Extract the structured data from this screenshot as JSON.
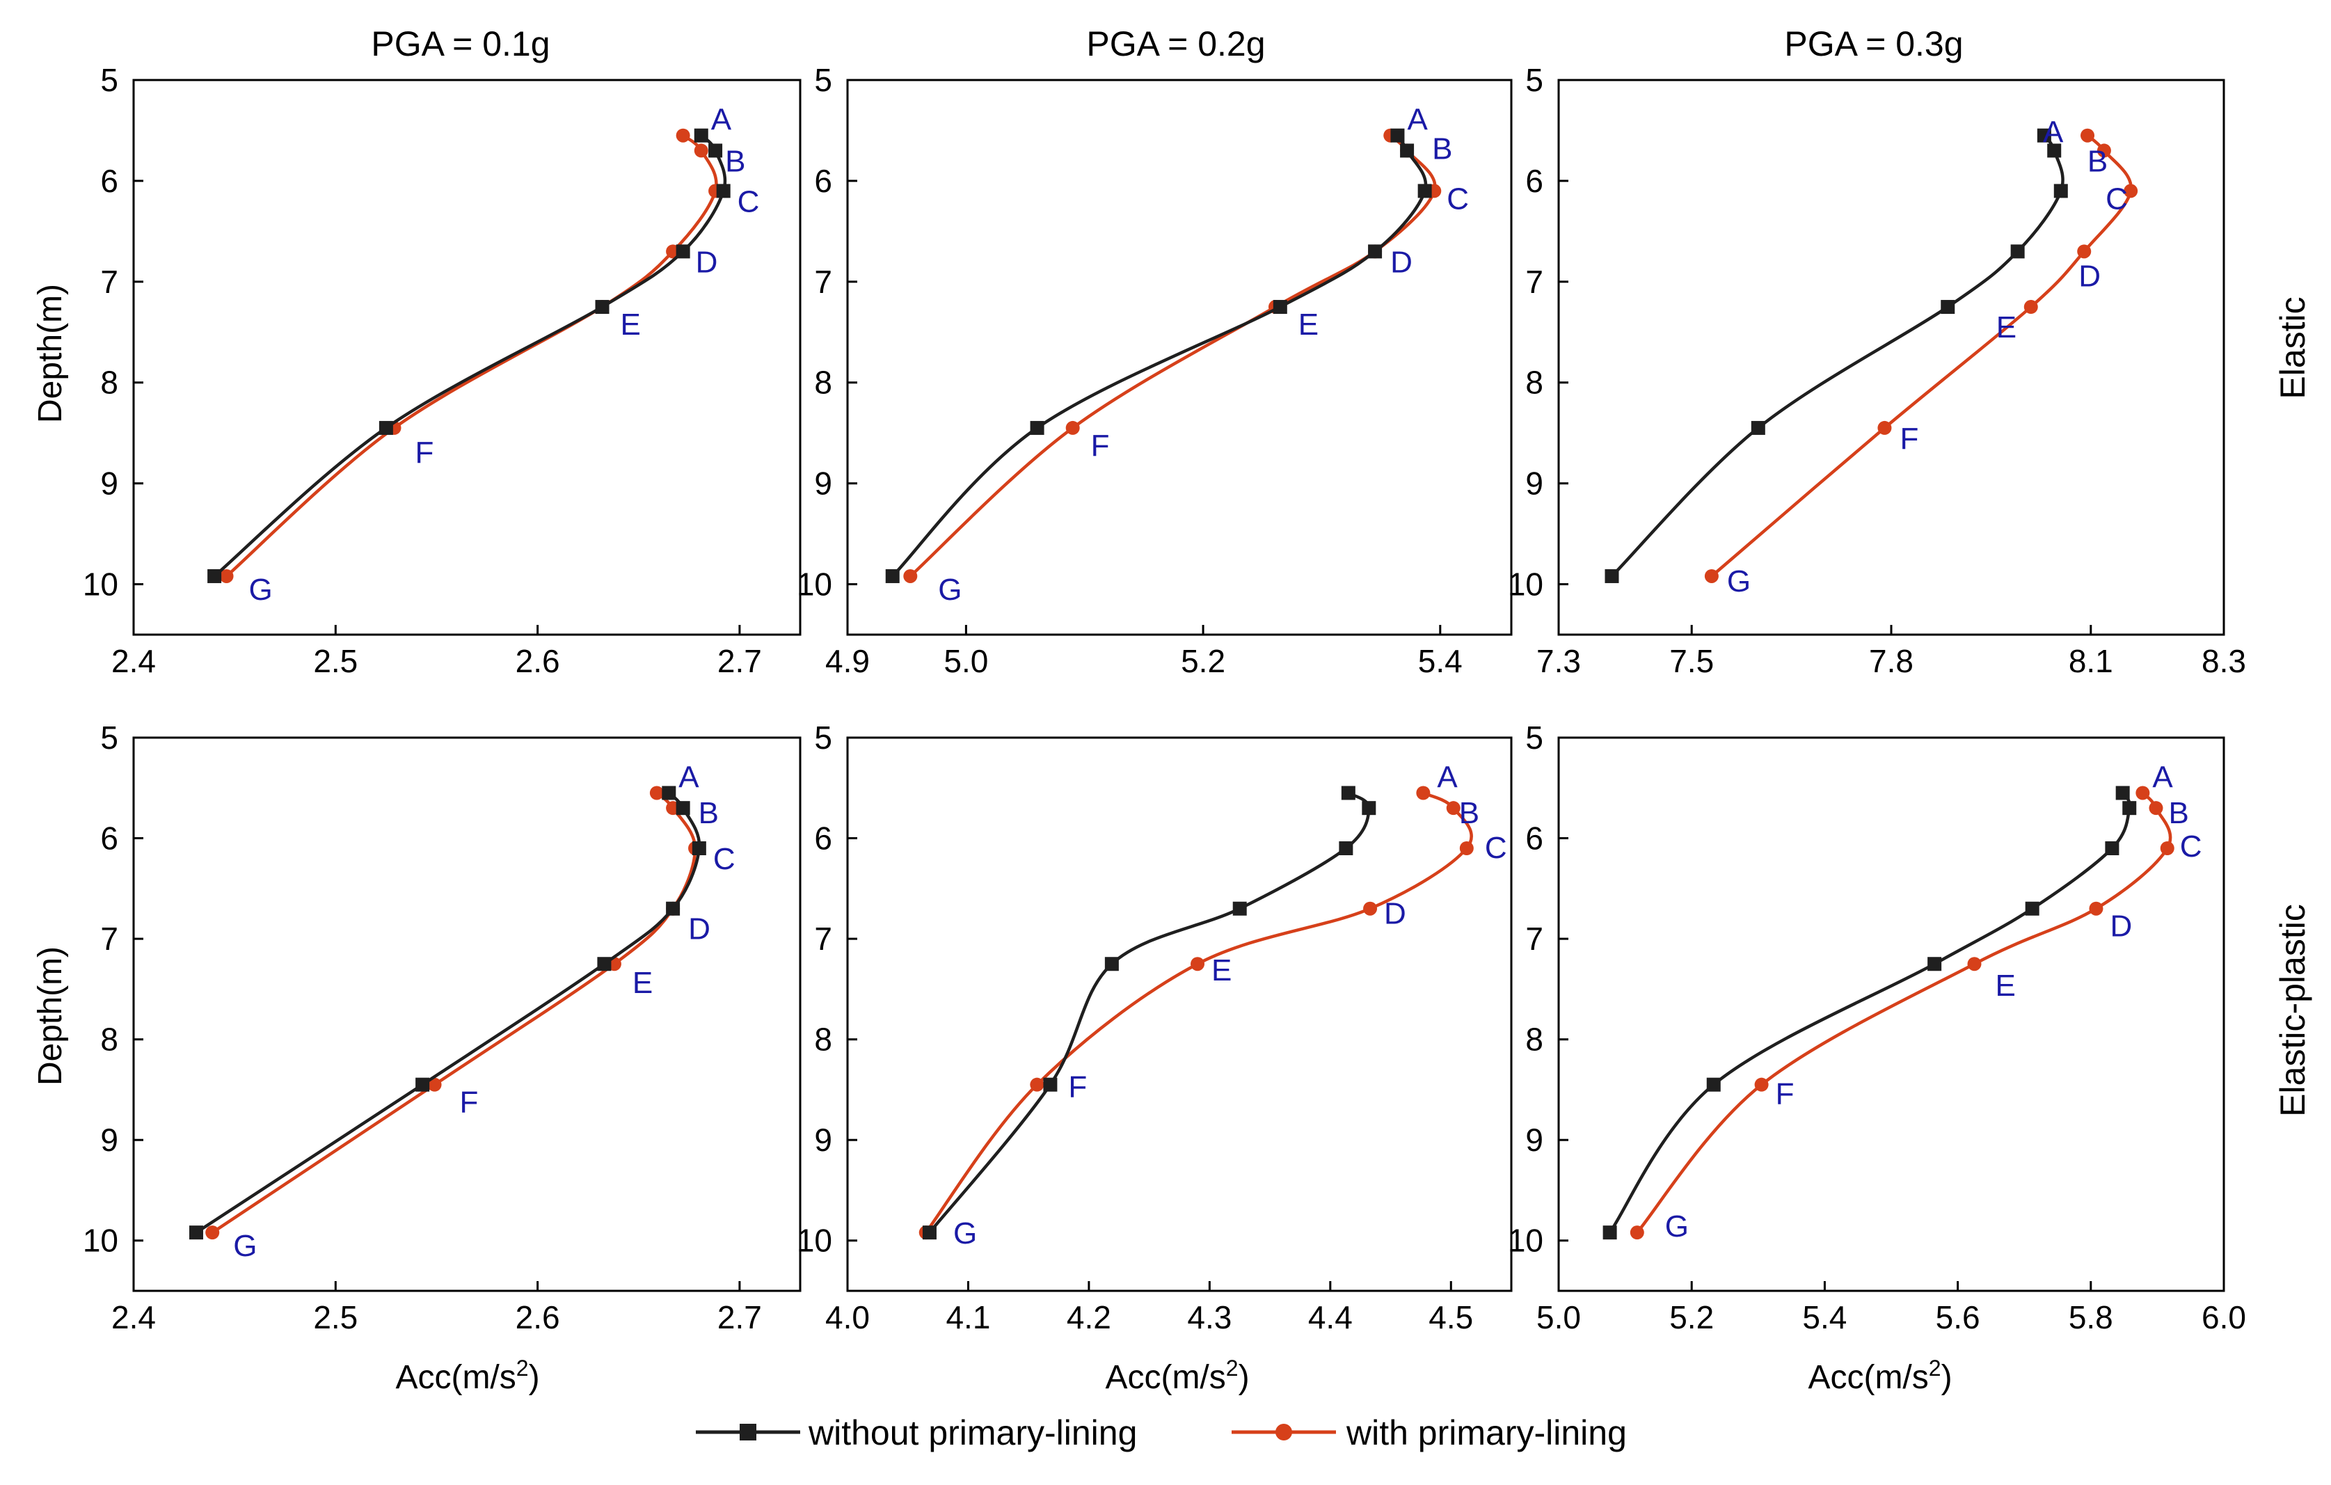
{
  "figure": {
    "column_titles": [
      "PGA = 0.1g",
      "PGA = 0.2g",
      "PGA = 0.3g"
    ],
    "row_titles": [
      "Elastic",
      "Elastic-plastic"
    ],
    "ylabel": "Depth(m)",
    "xlabel_main": "Acc(m/s",
    "xlabel_sup": "2",
    "xlabel_end": ")"
  },
  "legend": {
    "items": [
      {
        "label": "without primary-lining",
        "color": "#1f1f1f",
        "marker": "square"
      },
      {
        "label": "with primary-lining",
        "color": "#d6401a",
        "marker": "circle"
      }
    ]
  },
  "chart_data": [
    {
      "type": "line",
      "row": "Elastic",
      "column": "PGA = 0.1g",
      "xlim": [
        2.4,
        2.73
      ],
      "ylim": [
        5,
        10.5
      ],
      "y_inverted": true,
      "xticks": [
        "2.4",
        "2.5",
        "2.6",
        "2.7"
      ],
      "yticks": [
        "5",
        "6",
        "7",
        "8",
        "9",
        "10"
      ],
      "series": [
        {
          "name": "without primary-lining",
          "x": [
            2.681,
            2.688,
            2.692,
            2.672,
            2.632,
            2.525,
            2.44
          ],
          "y": [
            5.55,
            5.7,
            6.1,
            6.7,
            7.25,
            8.45,
            9.92
          ]
        },
        {
          "name": "with primary-lining",
          "x": [
            2.672,
            2.681,
            2.688,
            2.667,
            2.632,
            2.529,
            2.446
          ],
          "y": [
            5.55,
            5.7,
            6.1,
            6.7,
            7.25,
            8.45,
            9.92
          ]
        }
      ],
      "point_labels": [
        "A",
        "B",
        "C",
        "D",
        "E",
        "F",
        "G"
      ]
    },
    {
      "type": "line",
      "row": "Elastic",
      "column": "PGA = 0.2g",
      "xlim": [
        4.9,
        5.46
      ],
      "ylim": [
        5,
        10.5
      ],
      "y_inverted": true,
      "xticks": [
        "4.9",
        "5.0",
        "5.2",
        "5.4"
      ],
      "yticks": [
        "5",
        "6",
        "7",
        "8",
        "9",
        "10"
      ],
      "series": [
        {
          "name": "without primary-lining",
          "x": [
            5.364,
            5.372,
            5.387,
            5.345,
            5.265,
            5.06,
            4.938
          ],
          "y": [
            5.55,
            5.7,
            6.1,
            6.7,
            7.25,
            8.45,
            9.92
          ]
        },
        {
          "name": "with primary-lining",
          "x": [
            5.358,
            5.372,
            5.395,
            5.345,
            5.261,
            5.09,
            4.953
          ],
          "y": [
            5.55,
            5.7,
            6.1,
            6.7,
            7.25,
            8.45,
            9.92
          ]
        }
      ],
      "point_labels": [
        "A",
        "B",
        "C",
        "D",
        "E",
        "F",
        "G"
      ]
    },
    {
      "type": "line",
      "row": "Elastic",
      "column": "PGA = 0.3g",
      "xlim": [
        7.3,
        8.3
      ],
      "ylim": [
        5,
        10.5
      ],
      "y_inverted": true,
      "xticks": [
        "7.3",
        "7.5",
        "7.8",
        "8.1",
        "8.3"
      ],
      "yticks": [
        "5",
        "6",
        "7",
        "8",
        "9",
        "10"
      ],
      "series": [
        {
          "name": "without primary-lining",
          "x": [
            8.03,
            8.045,
            8.055,
            7.99,
            7.885,
            7.6,
            7.38
          ],
          "y": [
            5.55,
            5.7,
            6.1,
            6.7,
            7.25,
            8.45,
            9.92
          ]
        },
        {
          "name": "with primary-lining",
          "x": [
            8.095,
            8.12,
            8.16,
            8.09,
            8.01,
            7.79,
            7.53
          ],
          "y": [
            5.55,
            5.7,
            6.1,
            6.7,
            7.25,
            8.45,
            9.92
          ]
        }
      ],
      "point_labels": [
        "A",
        "B",
        "C",
        "D",
        "E",
        "F",
        "G"
      ]
    },
    {
      "type": "line",
      "row": "Elastic-plastic",
      "column": "PGA = 0.1g",
      "xlim": [
        2.4,
        2.73
      ],
      "ylim": [
        5,
        10.5
      ],
      "y_inverted": true,
      "xticks": [
        "2.4",
        "2.5",
        "2.6",
        "2.7"
      ],
      "yticks": [
        "5",
        "6",
        "7",
        "8",
        "9",
        "10"
      ],
      "series": [
        {
          "name": "without primary-lining",
          "x": [
            2.665,
            2.672,
            2.68,
            2.667,
            2.633,
            2.543,
            2.431
          ],
          "y": [
            5.55,
            5.7,
            6.1,
            6.7,
            7.25,
            8.45,
            9.92
          ]
        },
        {
          "name": "with primary-lining",
          "x": [
            2.659,
            2.667,
            2.678,
            2.667,
            2.638,
            2.549,
            2.439
          ],
          "y": [
            5.55,
            5.7,
            6.1,
            6.7,
            7.25,
            8.45,
            9.92
          ]
        }
      ],
      "point_labels": [
        "A",
        "B",
        "C",
        "D",
        "E",
        "F",
        "G"
      ]
    },
    {
      "type": "line",
      "row": "Elastic-plastic",
      "column": "PGA = 0.2g",
      "xlim": [
        4.0,
        4.55
      ],
      "ylim": [
        5,
        10.5
      ],
      "y_inverted": true,
      "xticks": [
        "4.0",
        "4.1",
        "4.2",
        "4.3",
        "4.4",
        "4.5"
      ],
      "yticks": [
        "5",
        "6",
        "7",
        "8",
        "9",
        "10"
      ],
      "series": [
        {
          "name": "without primary-lining",
          "x": [
            4.415,
            4.432,
            4.413,
            4.325,
            4.219,
            4.168,
            4.068
          ],
          "y": [
            5.55,
            5.7,
            6.1,
            6.7,
            7.25,
            8.45,
            9.92
          ]
        },
        {
          "name": "with primary-lining",
          "x": [
            4.477,
            4.502,
            4.513,
            4.433,
            4.29,
            4.157,
            4.065
          ],
          "y": [
            5.55,
            5.7,
            6.1,
            6.7,
            7.25,
            8.45,
            9.92
          ]
        }
      ],
      "point_labels": [
        "A",
        "B",
        "C",
        "D",
        "E",
        "F",
        "G"
      ]
    },
    {
      "type": "line",
      "row": "Elastic-plastic",
      "column": "PGA = 0.3g",
      "xlim": [
        5.0,
        6.0
      ],
      "ylim": [
        5,
        10.5
      ],
      "y_inverted": true,
      "xticks": [
        "5.0",
        "5.2",
        "5.4",
        "5.6",
        "5.8",
        "6.0"
      ],
      "yticks": [
        "5",
        "6",
        "7",
        "8",
        "9",
        "10"
      ],
      "series": [
        {
          "name": "without primary-lining",
          "x": [
            5.848,
            5.858,
            5.832,
            5.712,
            5.565,
            5.233,
            5.077
          ],
          "y": [
            5.55,
            5.7,
            6.1,
            6.7,
            7.25,
            8.45,
            9.92
          ]
        },
        {
          "name": "with primary-lining",
          "x": [
            5.878,
            5.898,
            5.915,
            5.808,
            5.625,
            5.305,
            5.118
          ],
          "y": [
            5.55,
            5.7,
            6.1,
            6.7,
            7.25,
            8.45,
            9.92
          ]
        }
      ],
      "point_labels": [
        "A",
        "B",
        "C",
        "D",
        "E",
        "F",
        "G"
      ]
    }
  ]
}
